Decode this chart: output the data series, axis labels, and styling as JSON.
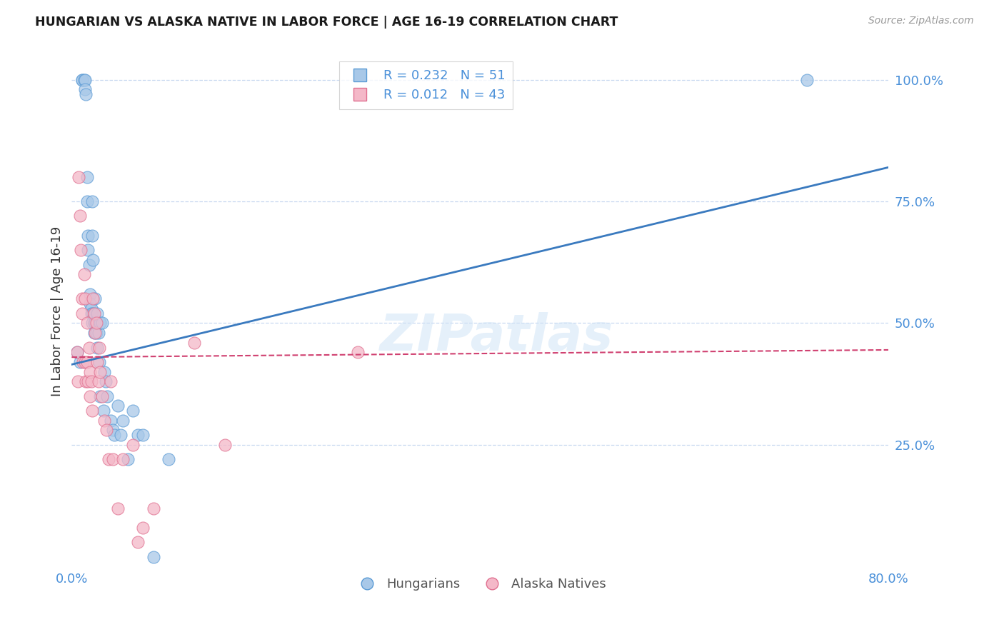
{
  "title": "HUNGARIAN VS ALASKA NATIVE IN LABOR FORCE | AGE 16-19 CORRELATION CHART",
  "source": "Source: ZipAtlas.com",
  "ylabel": "In Labor Force | Age 16-19",
  "R_hungarian": 0.232,
  "N_hungarian": 51,
  "R_alaska": 0.012,
  "N_alaska": 43,
  "xlim": [
    0.0,
    0.8
  ],
  "ylim": [
    0.0,
    1.05
  ],
  "yticks": [
    0.25,
    0.5,
    0.75,
    1.0
  ],
  "ytick_labels": [
    "25.0%",
    "50.0%",
    "75.0%",
    "100.0%"
  ],
  "xticks": [
    0.0,
    0.1,
    0.2,
    0.3,
    0.4,
    0.5,
    0.6,
    0.7,
    0.8
  ],
  "xtick_labels": [
    "0.0%",
    "",
    "",
    "",
    "",
    "",
    "",
    "",
    "80.0%"
  ],
  "blue_marker_fill": "#a8c8e8",
  "blue_marker_edge": "#5b9bd5",
  "pink_marker_fill": "#f4b8c8",
  "pink_marker_edge": "#e07090",
  "trend_blue_color": "#3a7abf",
  "trend_pink_color": "#d04070",
  "label_color": "#4a90d9",
  "grid_color": "#c8d8f0",
  "background_color": "#ffffff",
  "hungarian_x": [
    0.005,
    0.008,
    0.01,
    0.01,
    0.012,
    0.013,
    0.013,
    0.014,
    0.015,
    0.015,
    0.016,
    0.016,
    0.017,
    0.018,
    0.018,
    0.019,
    0.019,
    0.02,
    0.02,
    0.02,
    0.021,
    0.021,
    0.022,
    0.022,
    0.023,
    0.023,
    0.024,
    0.025,
    0.025,
    0.026,
    0.027,
    0.028,
    0.028,
    0.03,
    0.031,
    0.032,
    0.033,
    0.035,
    0.038,
    0.04,
    0.042,
    0.045,
    0.048,
    0.05,
    0.055,
    0.06,
    0.065,
    0.07,
    0.08,
    0.095,
    0.72
  ],
  "hungarian_y": [
    0.44,
    0.42,
    1.0,
    1.0,
    1.0,
    1.0,
    0.98,
    0.97,
    0.8,
    0.75,
    0.68,
    0.65,
    0.62,
    0.56,
    0.54,
    0.53,
    0.52,
    0.75,
    0.68,
    0.5,
    0.63,
    0.52,
    0.5,
    0.48,
    0.55,
    0.5,
    0.48,
    0.45,
    0.52,
    0.48,
    0.42,
    0.5,
    0.35,
    0.5,
    0.32,
    0.4,
    0.38,
    0.35,
    0.3,
    0.28,
    0.27,
    0.33,
    0.27,
    0.3,
    0.22,
    0.32,
    0.27,
    0.27,
    0.02,
    0.22,
    1.0
  ],
  "alaska_x": [
    0.005,
    0.006,
    0.007,
    0.008,
    0.009,
    0.01,
    0.01,
    0.011,
    0.012,
    0.013,
    0.013,
    0.014,
    0.015,
    0.015,
    0.016,
    0.017,
    0.018,
    0.018,
    0.019,
    0.02,
    0.021,
    0.022,
    0.023,
    0.024,
    0.025,
    0.026,
    0.027,
    0.028,
    0.03,
    0.032,
    0.034,
    0.036,
    0.038,
    0.04,
    0.045,
    0.05,
    0.06,
    0.065,
    0.07,
    0.08,
    0.12,
    0.15,
    0.28
  ],
  "alaska_y": [
    0.44,
    0.38,
    0.8,
    0.72,
    0.65,
    0.55,
    0.52,
    0.42,
    0.6,
    0.55,
    0.42,
    0.38,
    0.5,
    0.42,
    0.38,
    0.45,
    0.4,
    0.35,
    0.38,
    0.32,
    0.55,
    0.52,
    0.48,
    0.5,
    0.42,
    0.38,
    0.45,
    0.4,
    0.35,
    0.3,
    0.28,
    0.22,
    0.38,
    0.22,
    0.12,
    0.22,
    0.25,
    0.05,
    0.08,
    0.12,
    0.46,
    0.25,
    0.44
  ],
  "watermark": "ZIPatlas",
  "trend_hungarian_x0": 0.0,
  "trend_hungarian_y0": 0.415,
  "trend_hungarian_x1": 0.8,
  "trend_hungarian_y1": 0.82,
  "trend_alaska_x0": 0.0,
  "trend_alaska_y0": 0.43,
  "trend_alaska_x1": 0.8,
  "trend_alaska_y1": 0.445
}
